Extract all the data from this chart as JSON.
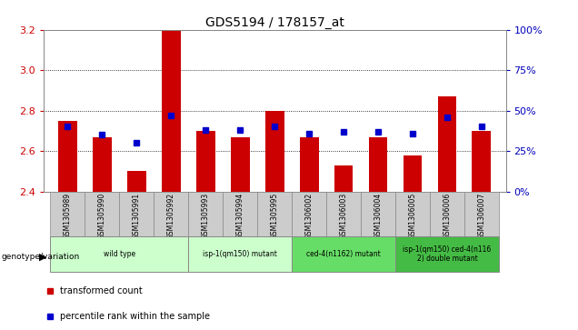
{
  "title": "GDS5194 / 178157_at",
  "samples": [
    "GSM1305989",
    "GSM1305990",
    "GSM1305991",
    "GSM1305992",
    "GSM1305993",
    "GSM1305994",
    "GSM1305995",
    "GSM1306002",
    "GSM1306003",
    "GSM1306004",
    "GSM1306005",
    "GSM1306006",
    "GSM1306007"
  ],
  "transformed_count": [
    2.75,
    2.67,
    2.5,
    3.2,
    2.7,
    2.67,
    2.8,
    2.67,
    2.53,
    2.67,
    2.58,
    2.87,
    2.7
  ],
  "percentile_rank": [
    40,
    35,
    30,
    47,
    38,
    38,
    40,
    36,
    37,
    37,
    36,
    46,
    40
  ],
  "bar_base": 2.4,
  "ylim_left": [
    2.4,
    3.2
  ],
  "ylim_right": [
    0,
    100
  ],
  "yticks_left": [
    2.4,
    2.6,
    2.8,
    3.0,
    3.2
  ],
  "yticks_right": [
    0,
    25,
    50,
    75,
    100
  ],
  "bar_color": "#cc0000",
  "dot_color": "#0000cc",
  "grid_color": "#000000",
  "groups": [
    {
      "label": "wild type",
      "indices": [
        0,
        1,
        2,
        3
      ],
      "color": "#ccffcc"
    },
    {
      "label": "isp-1(qm150) mutant",
      "indices": [
        4,
        5,
        6
      ],
      "color": "#ccffcc"
    },
    {
      "label": "ced-4(n1162) mutant",
      "indices": [
        7,
        8,
        9
      ],
      "color": "#66dd66"
    },
    {
      "label": "isp-1(qm150) ced-4(n116\n2) double mutant",
      "indices": [
        10,
        11,
        12
      ],
      "color": "#44bb44"
    }
  ],
  "genotype_label": "genotype/variation",
  "legend_items": [
    {
      "label": "transformed count",
      "color": "#cc0000"
    },
    {
      "label": "percentile rank within the sample",
      "color": "#0000cc"
    }
  ],
  "tick_label_color_left": "#cc0000",
  "tick_label_color_right": "#0000bb",
  "sample_col_bg": "#cccccc",
  "sample_col_border": "#888888"
}
